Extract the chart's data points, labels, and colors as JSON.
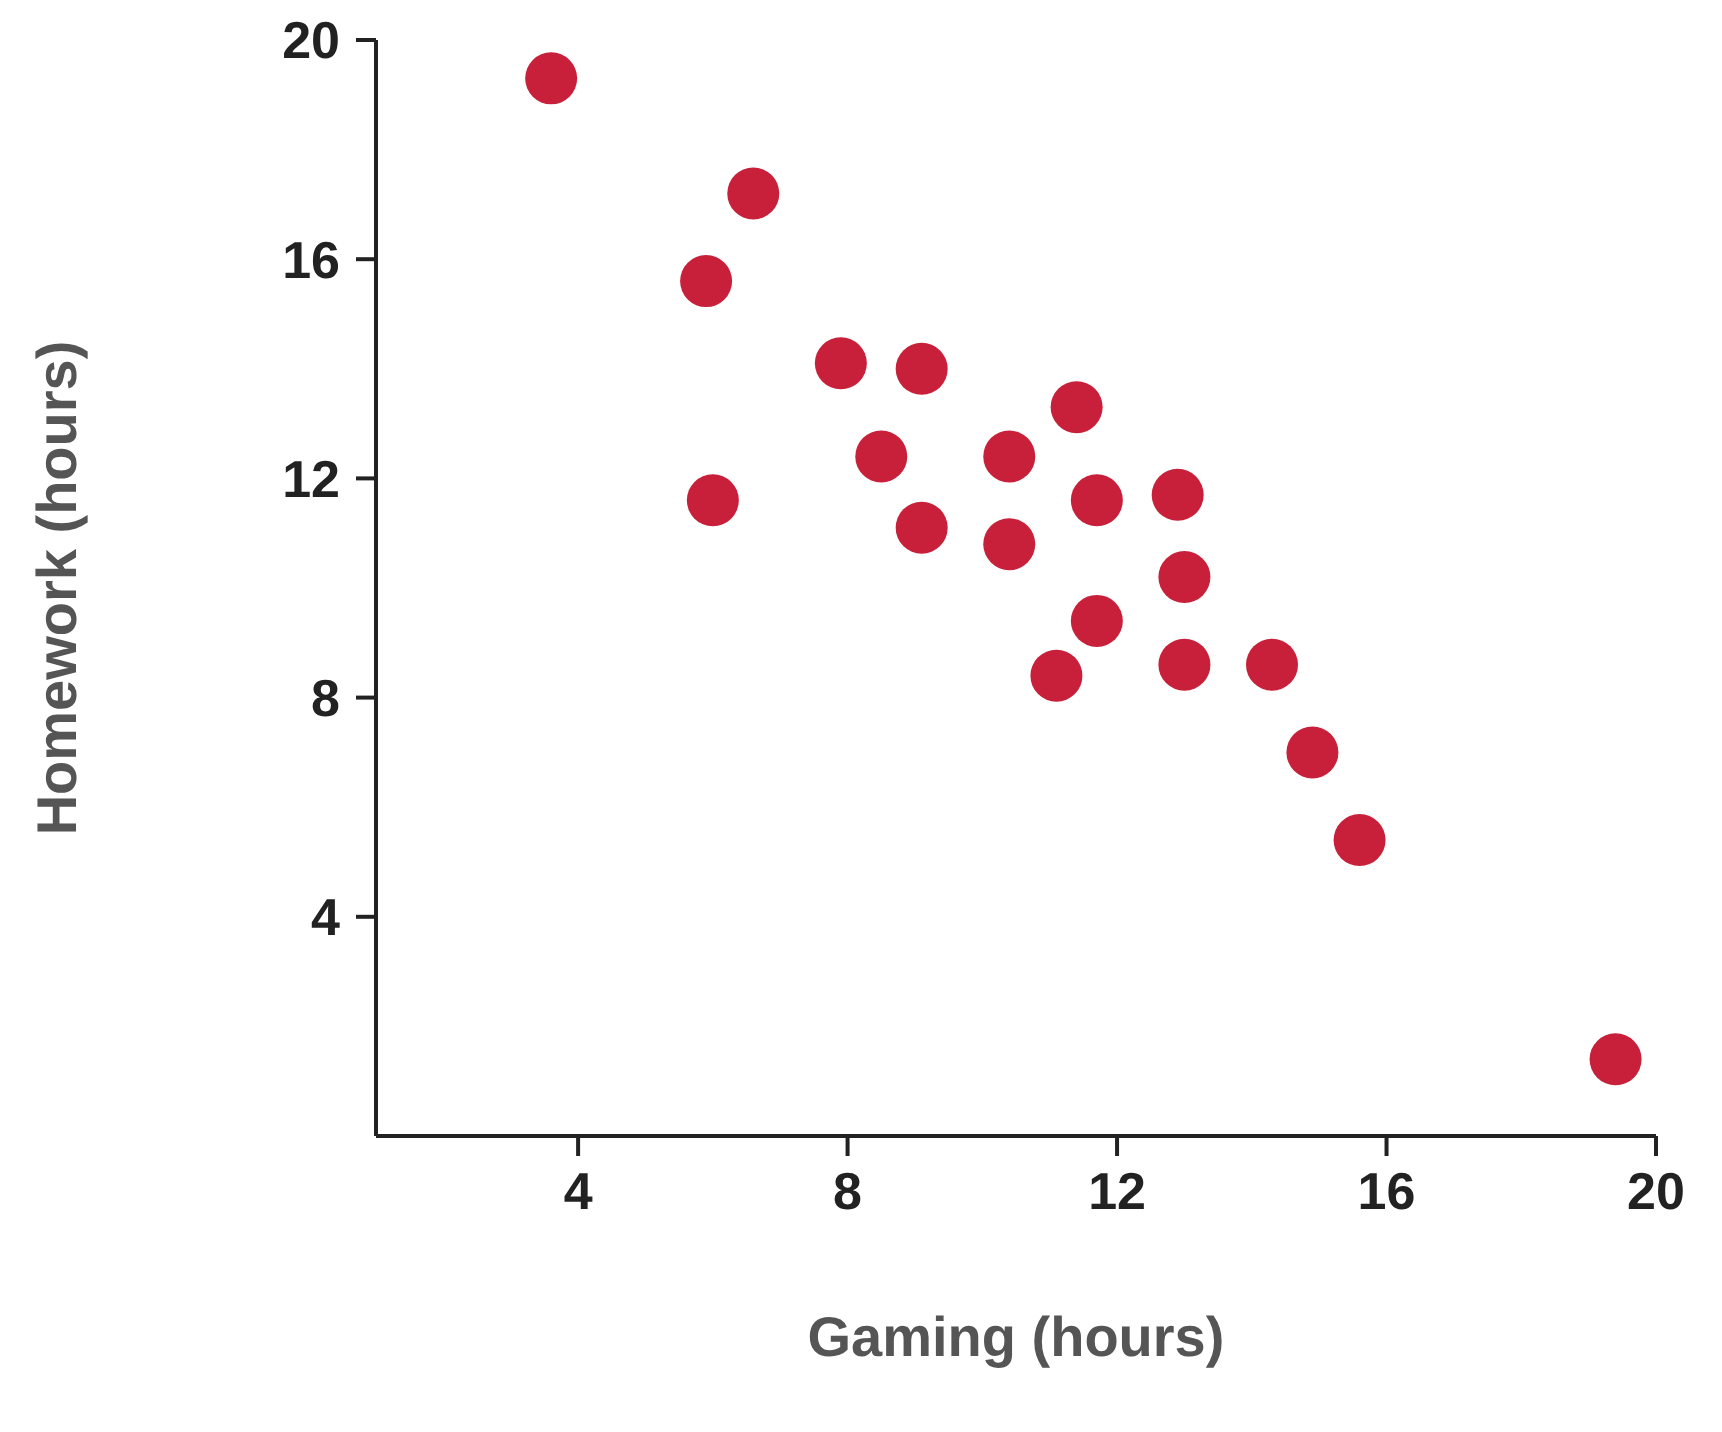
{
  "chart_data": {
    "type": "scatter",
    "xlabel": "Gaming (hours)",
    "ylabel": "Homework (hours)",
    "x": [
      3.6,
      6.6,
      5.9,
      6.0,
      7.9,
      9.1,
      8.5,
      9.1,
      11.4,
      10.4,
      10.4,
      11.7,
      11.7,
      11.1,
      12.9,
      13.0,
      13.0,
      14.3,
      14.9,
      15.6,
      19.4
    ],
    "values": [
      19.3,
      17.2,
      15.6,
      11.6,
      14.1,
      14.0,
      12.4,
      11.1,
      13.3,
      12.4,
      10.8,
      11.6,
      9.4,
      8.4,
      11.7,
      10.2,
      8.6,
      8.6,
      7.0,
      5.4,
      1.4
    ],
    "color": "#c8203a",
    "marker": "circle",
    "xlim": [
      1,
      20
    ],
    "xticks": [
      4,
      8,
      12,
      16,
      20
    ],
    "ylim": [
      0,
      20
    ],
    "yticks": [
      4,
      8,
      12,
      16,
      20
    ],
    "grid": false
  }
}
